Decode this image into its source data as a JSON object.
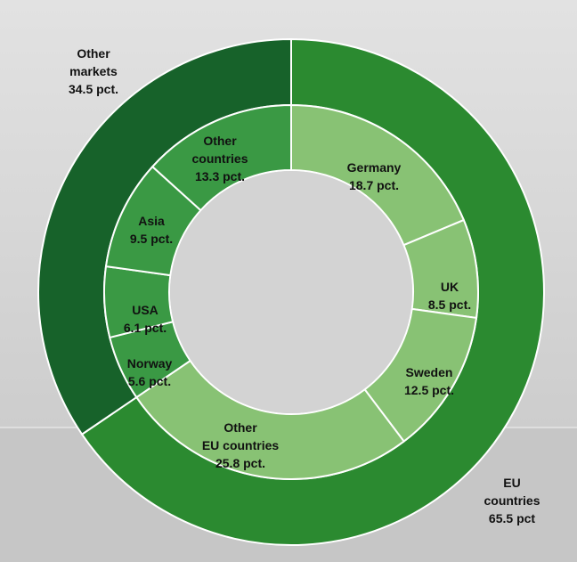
{
  "chart_data": {
    "type": "nested-donut",
    "outer": {
      "categories": [
        "EU\ncountries",
        "Other\nmarkets"
      ],
      "values": [
        65.5,
        34.5
      ],
      "value_labels": [
        "65.5 pct",
        "34.5 pct."
      ],
      "colors": [
        "#2b8a30",
        "#17622a"
      ]
    },
    "inner": {
      "categories": [
        "Germany",
        "UK",
        "Sweden",
        "Other\nEU countries",
        "Norway",
        "USA",
        "Asia",
        "Other\ncountries"
      ],
      "values": [
        18.7,
        8.5,
        12.5,
        25.8,
        5.6,
        6.1,
        9.5,
        13.3
      ],
      "value_labels": [
        "18.7 pct.",
        "8.5 pct.",
        "12.5 pct.",
        "25.8 pct.",
        "5.6 pct.",
        "6.1 pct.",
        "9.5 pct.",
        "13.3 pct."
      ],
      "colors": [
        "#88c274",
        "#88c274",
        "#88c274",
        "#88c274",
        "#3a9944",
        "#3a9944",
        "#3a9944",
        "#3a9944"
      ]
    }
  }
}
